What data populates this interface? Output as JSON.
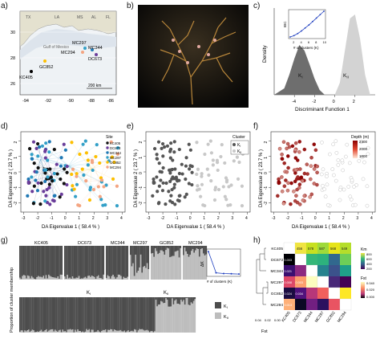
{
  "panel_labels": {
    "a": "a)",
    "b": "b)",
    "c": "c)",
    "d": "d)",
    "e": "e)",
    "f": "f)",
    "g": "g)",
    "h": "h)"
  },
  "map": {
    "states": [
      "TX",
      "LA",
      "MS",
      "AL",
      "FL"
    ],
    "gulf_label": "Gulf of Mexico",
    "sites": [
      "KC405",
      "GC852",
      "MC297",
      "MC294",
      "MC344",
      "DC673"
    ],
    "lat_ticks": [
      "30",
      "28",
      "26"
    ],
    "lon_ticks": [
      "-94",
      "-92",
      "-90",
      "-88",
      "-86"
    ],
    "scale": "200 km",
    "colors": {
      "land": "#e4e1cf",
      "water": "#f2f5f7",
      "shelf": "#dde4ec"
    }
  },
  "photo": {
    "alt_desc": ""
  },
  "density": {
    "ylabel": "Density",
    "xlabel": "Discriminant Function 1",
    "xticks": [
      "-4",
      "-2",
      "0",
      "2"
    ],
    "k1_label": "K",
    "k1_sub": "I",
    "k2_label": "K",
    "k2_sub": "II",
    "inset_ylabel": "BIC",
    "inset_xlabel": "# of clusters (K)",
    "inset_xticks": [
      "2",
      "4",
      "6",
      "8",
      "10"
    ]
  },
  "scatter": {
    "xlabel": "DA Eigenvalue 1 ( 58.4 % )",
    "ylabel": "DA Eigenvalue 2 ( 23.7 % )",
    "xticks": [
      "-3",
      "-2",
      "-1",
      "0",
      "1",
      "2",
      "3",
      "4"
    ],
    "yticks": [
      "-2",
      "-1",
      "0",
      "1",
      "2"
    ],
    "site_legend_title": "Site",
    "site_legend": [
      {
        "name": "KC405",
        "color": "#111111"
      },
      {
        "name": "DC673",
        "color": "#6a3d9a"
      },
      {
        "name": "MC344",
        "color": "#1f78b4"
      },
      {
        "name": "MC297",
        "color": "#33a0c8"
      },
      {
        "name": "GC852",
        "color": "#fdbf00"
      },
      {
        "name": "MC294",
        "color": "#f4a582"
      }
    ],
    "cluster_legend_title": "Cluster",
    "cluster_legend": [
      {
        "name": "K",
        "sub": "I",
        "color": "#555555"
      },
      {
        "name": "K",
        "sub": "II",
        "color": "#c8c8c8"
      }
    ],
    "depth_legend_title": "Depth (m)",
    "depth_ticks": [
      "2400",
      "2000",
      "1600"
    ]
  },
  "structure": {
    "ylabel": "Proportion of cluster membership",
    "top_sites": [
      "KC405",
      "DC673",
      "MC344",
      "MC297",
      "GC852",
      "MC294"
    ],
    "bottom_k1": "K",
    "bottom_k1_sub": "I",
    "bottom_k2": "K",
    "bottom_k2_sub": "II",
    "yticks": [
      "0.00",
      "0.25",
      "0.50",
      "0.75",
      "1.00"
    ],
    "legend": [
      {
        "name": "K",
        "sub": "I",
        "color": "#4d4d4d"
      },
      {
        "name": "K",
        "sub": "II",
        "color": "#bdbdbd"
      }
    ],
    "inset_ylabel": "ΔK",
    "inset_xlabel": "# of clusters (K)"
  },
  "heatmap": {
    "sites": [
      "KC405",
      "DC673",
      "MC344",
      "MC297",
      "GC852",
      "MC294"
    ],
    "km_legend_title": "Km",
    "km_ticks": [
      "800",
      "600",
      "400",
      "200"
    ],
    "fst_legend_title": "Fst",
    "fst_ticks": [
      "0.040",
      "0.020",
      "0.000"
    ],
    "fst_axis_label": "Fst",
    "fst_axis_ticks": [
      "0.04",
      "0.02",
      "0.00"
    ],
    "km_values": [
      "456",
      "578",
      "587",
      "568",
      "549"
    ],
    "fst_values": [
      "0.003",
      "0.021",
      "0.008",
      "0.003",
      "0.024",
      "0.034",
      "0.013"
    ]
  },
  "chart_data": [
    {
      "type": "area",
      "title": "",
      "xlabel": "Discriminant Function 1",
      "ylabel": "Density",
      "xlim": [
        -6,
        4
      ],
      "series": [
        {
          "name": "KI",
          "x": [
            -6,
            -5,
            -4.5,
            -4,
            -3.5,
            -3,
            -2.5,
            -2,
            -1.5,
            -1
          ],
          "values": [
            0.0,
            0.08,
            0.25,
            0.45,
            0.62,
            0.55,
            0.38,
            0.2,
            0.06,
            0.0
          ]
        },
        {
          "name": "KII",
          "x": [
            0,
            0.5,
            1,
            1.5,
            2,
            2.5,
            3,
            3.5
          ],
          "values": [
            0.0,
            0.15,
            0.55,
            0.95,
            1.0,
            0.7,
            0.25,
            0.0
          ]
        }
      ]
    },
    {
      "type": "line",
      "title": "",
      "xlabel": "# of clusters (K)",
      "ylabel": "BIC",
      "x": [
        1,
        2,
        3,
        4,
        5,
        6,
        7,
        8,
        9,
        10
      ],
      "values": [
        1,
        1.3,
        1.8,
        2.4,
        3.1,
        3.8,
        4.6,
        5.4,
        6.2,
        7.0
      ]
    },
    {
      "type": "line",
      "title": "",
      "xlabel": "# of clusters (K)",
      "ylabel": "ΔK",
      "x": [
        2,
        3,
        4,
        5,
        6
      ],
      "values": [
        480,
        40,
        25,
        20,
        15
      ]
    }
  ]
}
